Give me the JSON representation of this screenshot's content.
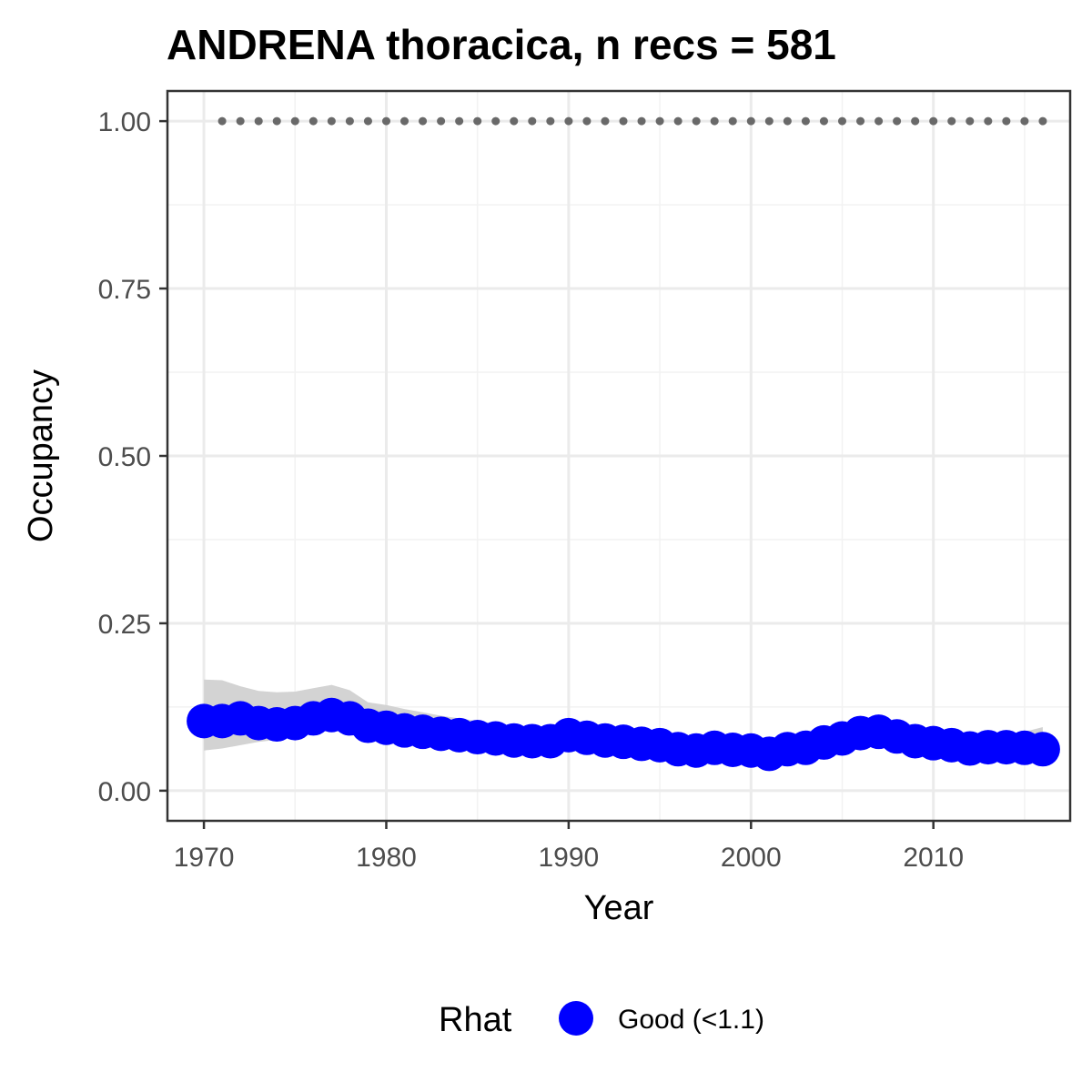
{
  "chart_data": {
    "type": "line",
    "title": "ANDRENA thoracica, n recs = 581",
    "xlabel": "Year",
    "ylabel": "Occupancy",
    "xlim": [
      1968,
      2017.5
    ],
    "ylim": [
      -0.045,
      1.045
    ],
    "x_ticks": [
      1970,
      1980,
      1990,
      2000,
      2010
    ],
    "y_ticks": [
      0.0,
      0.25,
      0.5,
      0.75,
      1.0
    ],
    "y_tick_labels": [
      "0.00",
      "0.25",
      "0.50",
      "0.75",
      "1.00"
    ],
    "grid": true,
    "legend": {
      "title": "Rhat",
      "position": "bottom",
      "entries": [
        {
          "label": "Good (<1.1)",
          "color": "#0000ff"
        }
      ]
    },
    "x": [
      1970,
      1971,
      1972,
      1973,
      1974,
      1975,
      1976,
      1977,
      1978,
      1979,
      1980,
      1981,
      1982,
      1983,
      1984,
      1985,
      1986,
      1987,
      1988,
      1989,
      1990,
      1991,
      1992,
      1993,
      1994,
      1995,
      1996,
      1997,
      1998,
      1999,
      2000,
      2001,
      2002,
      2003,
      2004,
      2005,
      2006,
      2007,
      2008,
      2009,
      2010,
      2011,
      2012,
      2013,
      2014,
      2015,
      2016
    ],
    "series": [
      {
        "name": "Good (<1.1)",
        "color": "#0000ff",
        "values": [
          0.104,
          0.104,
          0.108,
          0.101,
          0.099,
          0.101,
          0.108,
          0.113,
          0.108,
          0.097,
          0.094,
          0.09,
          0.088,
          0.085,
          0.083,
          0.08,
          0.078,
          0.075,
          0.074,
          0.074,
          0.083,
          0.079,
          0.075,
          0.073,
          0.07,
          0.068,
          0.062,
          0.06,
          0.064,
          0.061,
          0.06,
          0.055,
          0.062,
          0.064,
          0.072,
          0.078,
          0.086,
          0.088,
          0.081,
          0.074,
          0.071,
          0.068,
          0.063,
          0.065,
          0.065,
          0.064,
          0.062
        ],
        "lower": [
          0.06,
          0.063,
          0.068,
          0.073,
          0.076,
          0.08,
          0.086,
          0.09,
          0.088,
          0.082,
          0.08,
          0.076,
          0.073,
          0.07,
          0.068,
          0.066,
          0.064,
          0.062,
          0.061,
          0.061,
          0.066,
          0.064,
          0.062,
          0.06,
          0.058,
          0.055,
          0.05,
          0.048,
          0.051,
          0.049,
          0.048,
          0.044,
          0.049,
          0.051,
          0.057,
          0.063,
          0.069,
          0.071,
          0.066,
          0.06,
          0.057,
          0.055,
          0.051,
          0.052,
          0.052,
          0.051,
          0.048
        ],
        "upper": [
          0.166,
          0.165,
          0.156,
          0.149,
          0.147,
          0.148,
          0.153,
          0.158,
          0.15,
          0.132,
          0.128,
          0.122,
          0.117,
          0.112,
          0.108,
          0.104,
          0.1,
          0.096,
          0.094,
          0.093,
          0.102,
          0.097,
          0.092,
          0.089,
          0.086,
          0.083,
          0.077,
          0.075,
          0.079,
          0.076,
          0.075,
          0.07,
          0.077,
          0.08,
          0.088,
          0.095,
          0.104,
          0.107,
          0.099,
          0.091,
          0.088,
          0.085,
          0.08,
          0.083,
          0.085,
          0.088,
          0.095
        ]
      }
    ],
    "reference_points": {
      "y": 1.0,
      "x_from": 1971,
      "x_to": 2016,
      "step": 1,
      "color": "#696969"
    },
    "band_color": "#d3d3d3"
  }
}
